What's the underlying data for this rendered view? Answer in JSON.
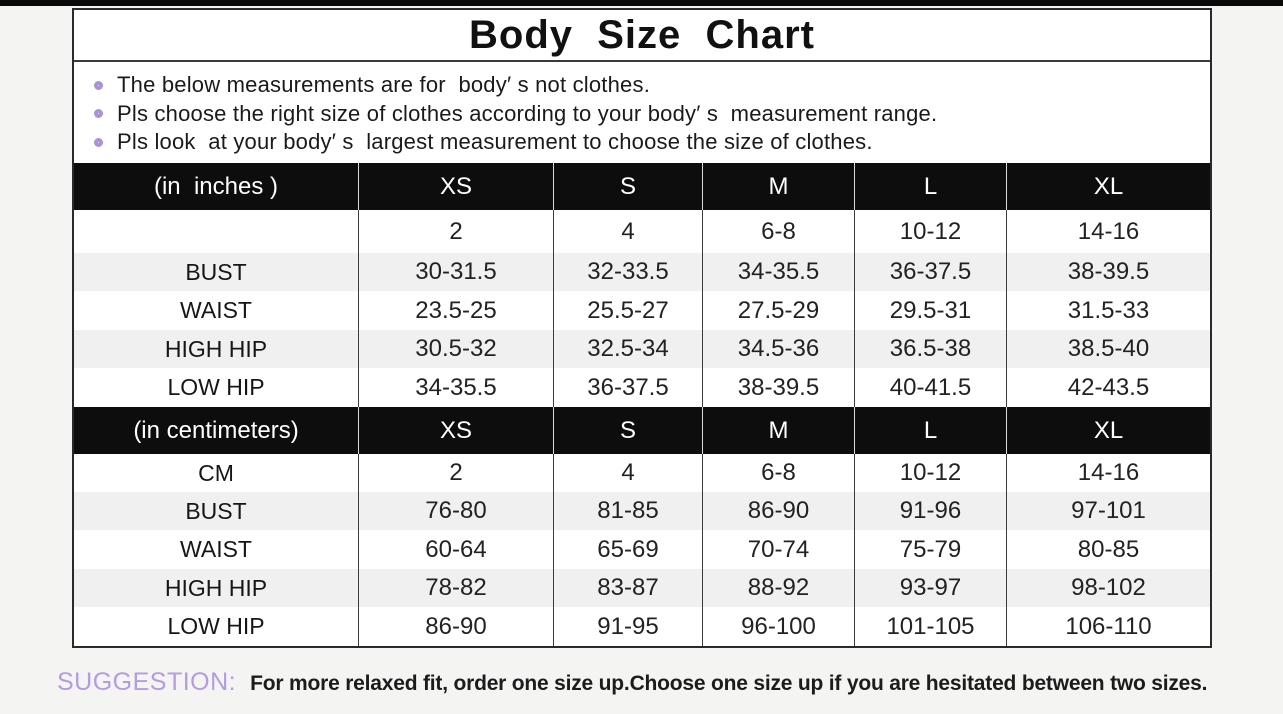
{
  "page": {
    "title": "Body  Size  Chart"
  },
  "notes": [
    "The below measurements are for  body′ s not clothes.",
    "Pls choose the right size of clothes according to your body′ s  measurement range.",
    "Pls look  at your body′ s  largest measurement to choose the size of clothes."
  ],
  "size_table": {
    "sections": [
      {
        "unit_label": "(in  inches )",
        "sizes": [
          "XS",
          "S",
          "M",
          "L",
          "XL"
        ],
        "rows": [
          {
            "label": "",
            "values": [
              "2",
              "4",
              "6-8",
              "10-12",
              "14-16"
            ]
          },
          {
            "label": "BUST",
            "values": [
              "30-31.5",
              "32-33.5",
              "34-35.5",
              "36-37.5",
              "38-39.5"
            ]
          },
          {
            "label": "WAIST",
            "values": [
              "23.5-25",
              "25.5-27",
              "27.5-29",
              "29.5-31",
              "31.5-33"
            ]
          },
          {
            "label": "HIGH HIP",
            "values": [
              "30.5-32",
              "32.5-34",
              "34.5-36",
              "36.5-38",
              "38.5-40"
            ]
          },
          {
            "label": "LOW HIP",
            "values": [
              "34-35.5",
              "36-37.5",
              "38-39.5",
              "40-41.5",
              "42-43.5"
            ]
          }
        ]
      },
      {
        "unit_label": "(in centimeters)",
        "sizes": [
          "XS",
          "S",
          "M",
          "L",
          "XL"
        ],
        "rows": [
          {
            "label": "CM",
            "values": [
              "2",
              "4",
              "6-8",
              "10-12",
              "14-16"
            ]
          },
          {
            "label": "BUST",
            "values": [
              "76-80",
              "81-85",
              "86-90",
              "91-96",
              "97-101"
            ]
          },
          {
            "label": "WAIST",
            "values": [
              "60-64",
              "65-69",
              "70-74",
              "75-79",
              "80-85"
            ]
          },
          {
            "label": "HIGH HIP",
            "values": [
              "78-82",
              "83-87",
              "88-92",
              "93-97",
              "98-102"
            ]
          },
          {
            "label": "LOW HIP",
            "values": [
              "86-90",
              "91-95",
              "96-100",
              "101-105",
              "106-110"
            ]
          }
        ]
      }
    ]
  },
  "footer": {
    "suggestion_label": "SUGGESTION:",
    "suggestion_text": "For more relaxed fit, order one size up.Choose one size up if you are hesitated between two sizes."
  },
  "colors": {
    "accent_bullet": "#ab91d6",
    "accent_suggestion": "#b49ce2",
    "header_bg": "#0d0d0d",
    "header_text": "#ffffff",
    "row_stripe": "#f0f0f0",
    "page_bg": "#f4f4f3",
    "table_bg": "#ffffff",
    "border_dark": "#2a2a2a"
  }
}
